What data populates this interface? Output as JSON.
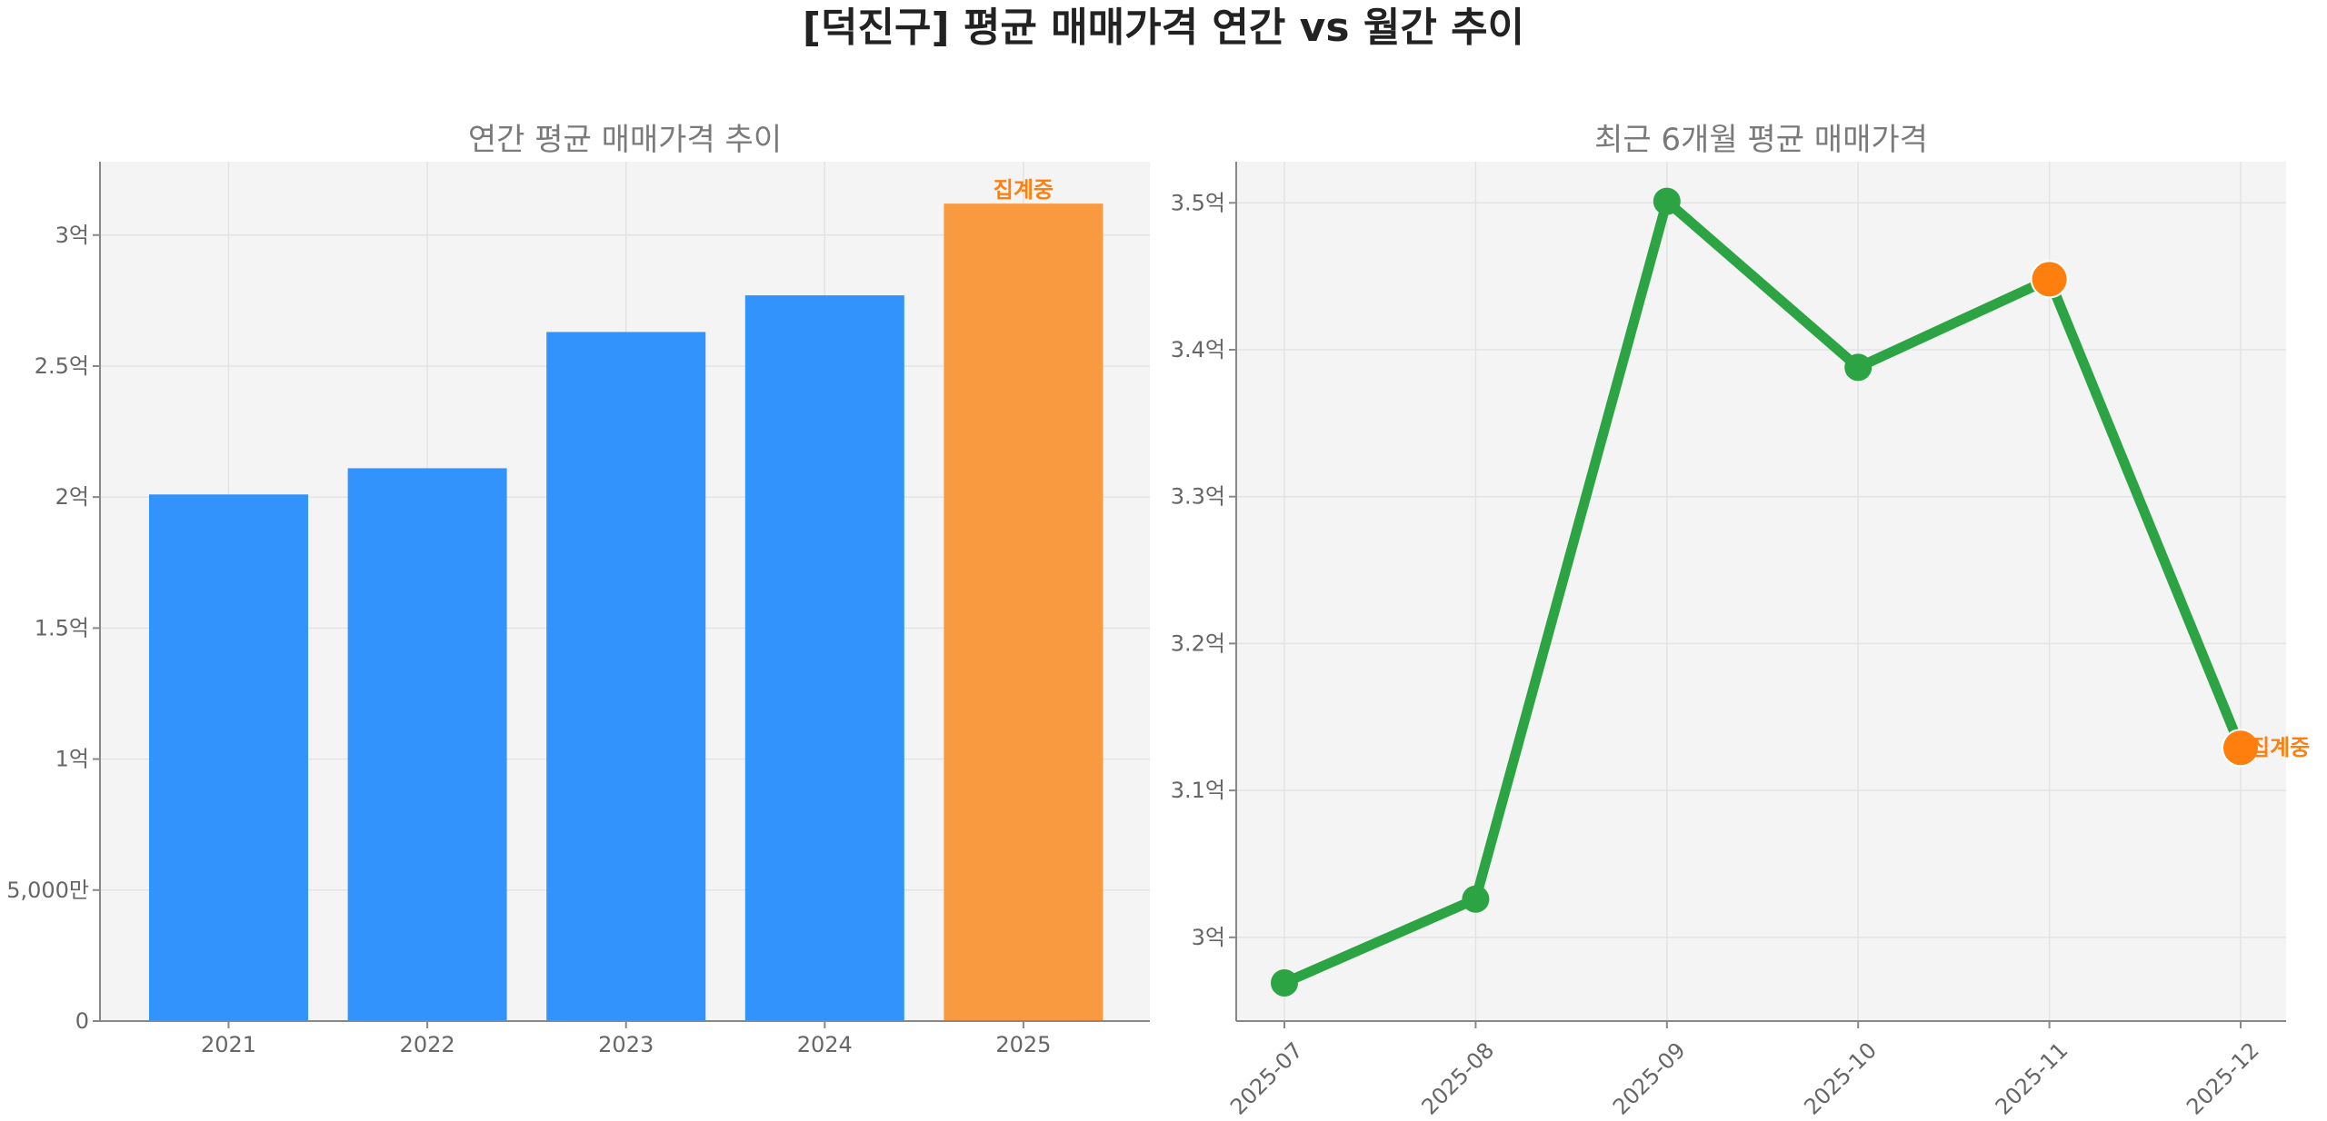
{
  "title": "[덕진구] 평균 매매가격 연간 vs 월간 추이",
  "chart_data": [
    {
      "type": "bar",
      "title": "연간 평균 매매가격 추이",
      "categories": [
        "2021",
        "2022",
        "2023",
        "2024",
        "2025"
      ],
      "values": [
        2.01,
        2.11,
        2.63,
        2.77,
        3.12
      ],
      "unit": "억",
      "ylim": [
        0,
        3.28
      ],
      "yticks": [
        0,
        0.5,
        1,
        1.5,
        2,
        2.5,
        3
      ],
      "ytick_labels": [
        "0",
        "5,000만",
        "1억",
        "1.5억",
        "2억",
        "2.5억",
        "3억"
      ],
      "grid": true,
      "colors": [
        "#3193fb",
        "#3193fb",
        "#3193fb",
        "#3193fb",
        "#f99a40"
      ],
      "annotations": [
        {
          "category": "2025",
          "text": "집계중"
        }
      ]
    },
    {
      "type": "line",
      "title": "최근 6개월 평균 매매가격",
      "x": [
        "2025-07",
        "2025-08",
        "2025-09",
        "2025-10",
        "2025-11",
        "2025-12"
      ],
      "values": [
        2.969,
        3.026,
        3.501,
        3.388,
        3.448,
        3.129
      ],
      "unit": "억",
      "ylim": [
        2.943,
        3.528
      ],
      "yticks": [
        3.0,
        3.1,
        3.2,
        3.3,
        3.4,
        3.5
      ],
      "ytick_labels": [
        "3억",
        "3.1억",
        "3.2억",
        "3.3억",
        "3.4억",
        "3.5억"
      ],
      "grid": true,
      "line_color": "#2ca444",
      "highlight_color": "#ff7f0e",
      "highlight_points": [
        "2025-11",
        "2025-12"
      ],
      "annotations": [
        {
          "x": "2025-12",
          "text": "집계중"
        }
      ]
    }
  ]
}
